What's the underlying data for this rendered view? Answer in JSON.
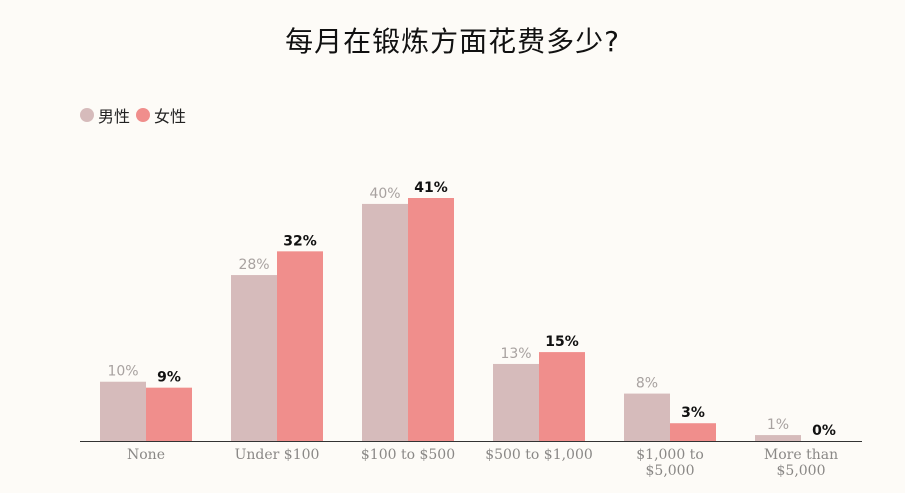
{
  "chart_data": {
    "type": "bar",
    "title": "每月在锻炼方面花费多少?",
    "categories": [
      "None",
      "Under $100",
      "$100 to $500",
      "$500 to $1,000",
      "$1,000 to\n$5,000",
      "More than\n$5,000"
    ],
    "series": [
      {
        "name": "男性",
        "values": [
          10,
          28,
          40,
          13,
          8,
          1
        ],
        "color": "#d6bbbb",
        "label_color": "#a8a2a0",
        "label_weight": "normal"
      },
      {
        "name": "女性",
        "values": [
          9,
          32,
          41,
          15,
          3,
          0
        ],
        "color": "#f08e8c",
        "label_color": "#111111",
        "label_weight": "bold"
      }
    ],
    "value_suffix": "%",
    "ylim": [
      0,
      41
    ],
    "grid": false,
    "legend": "top-left"
  }
}
